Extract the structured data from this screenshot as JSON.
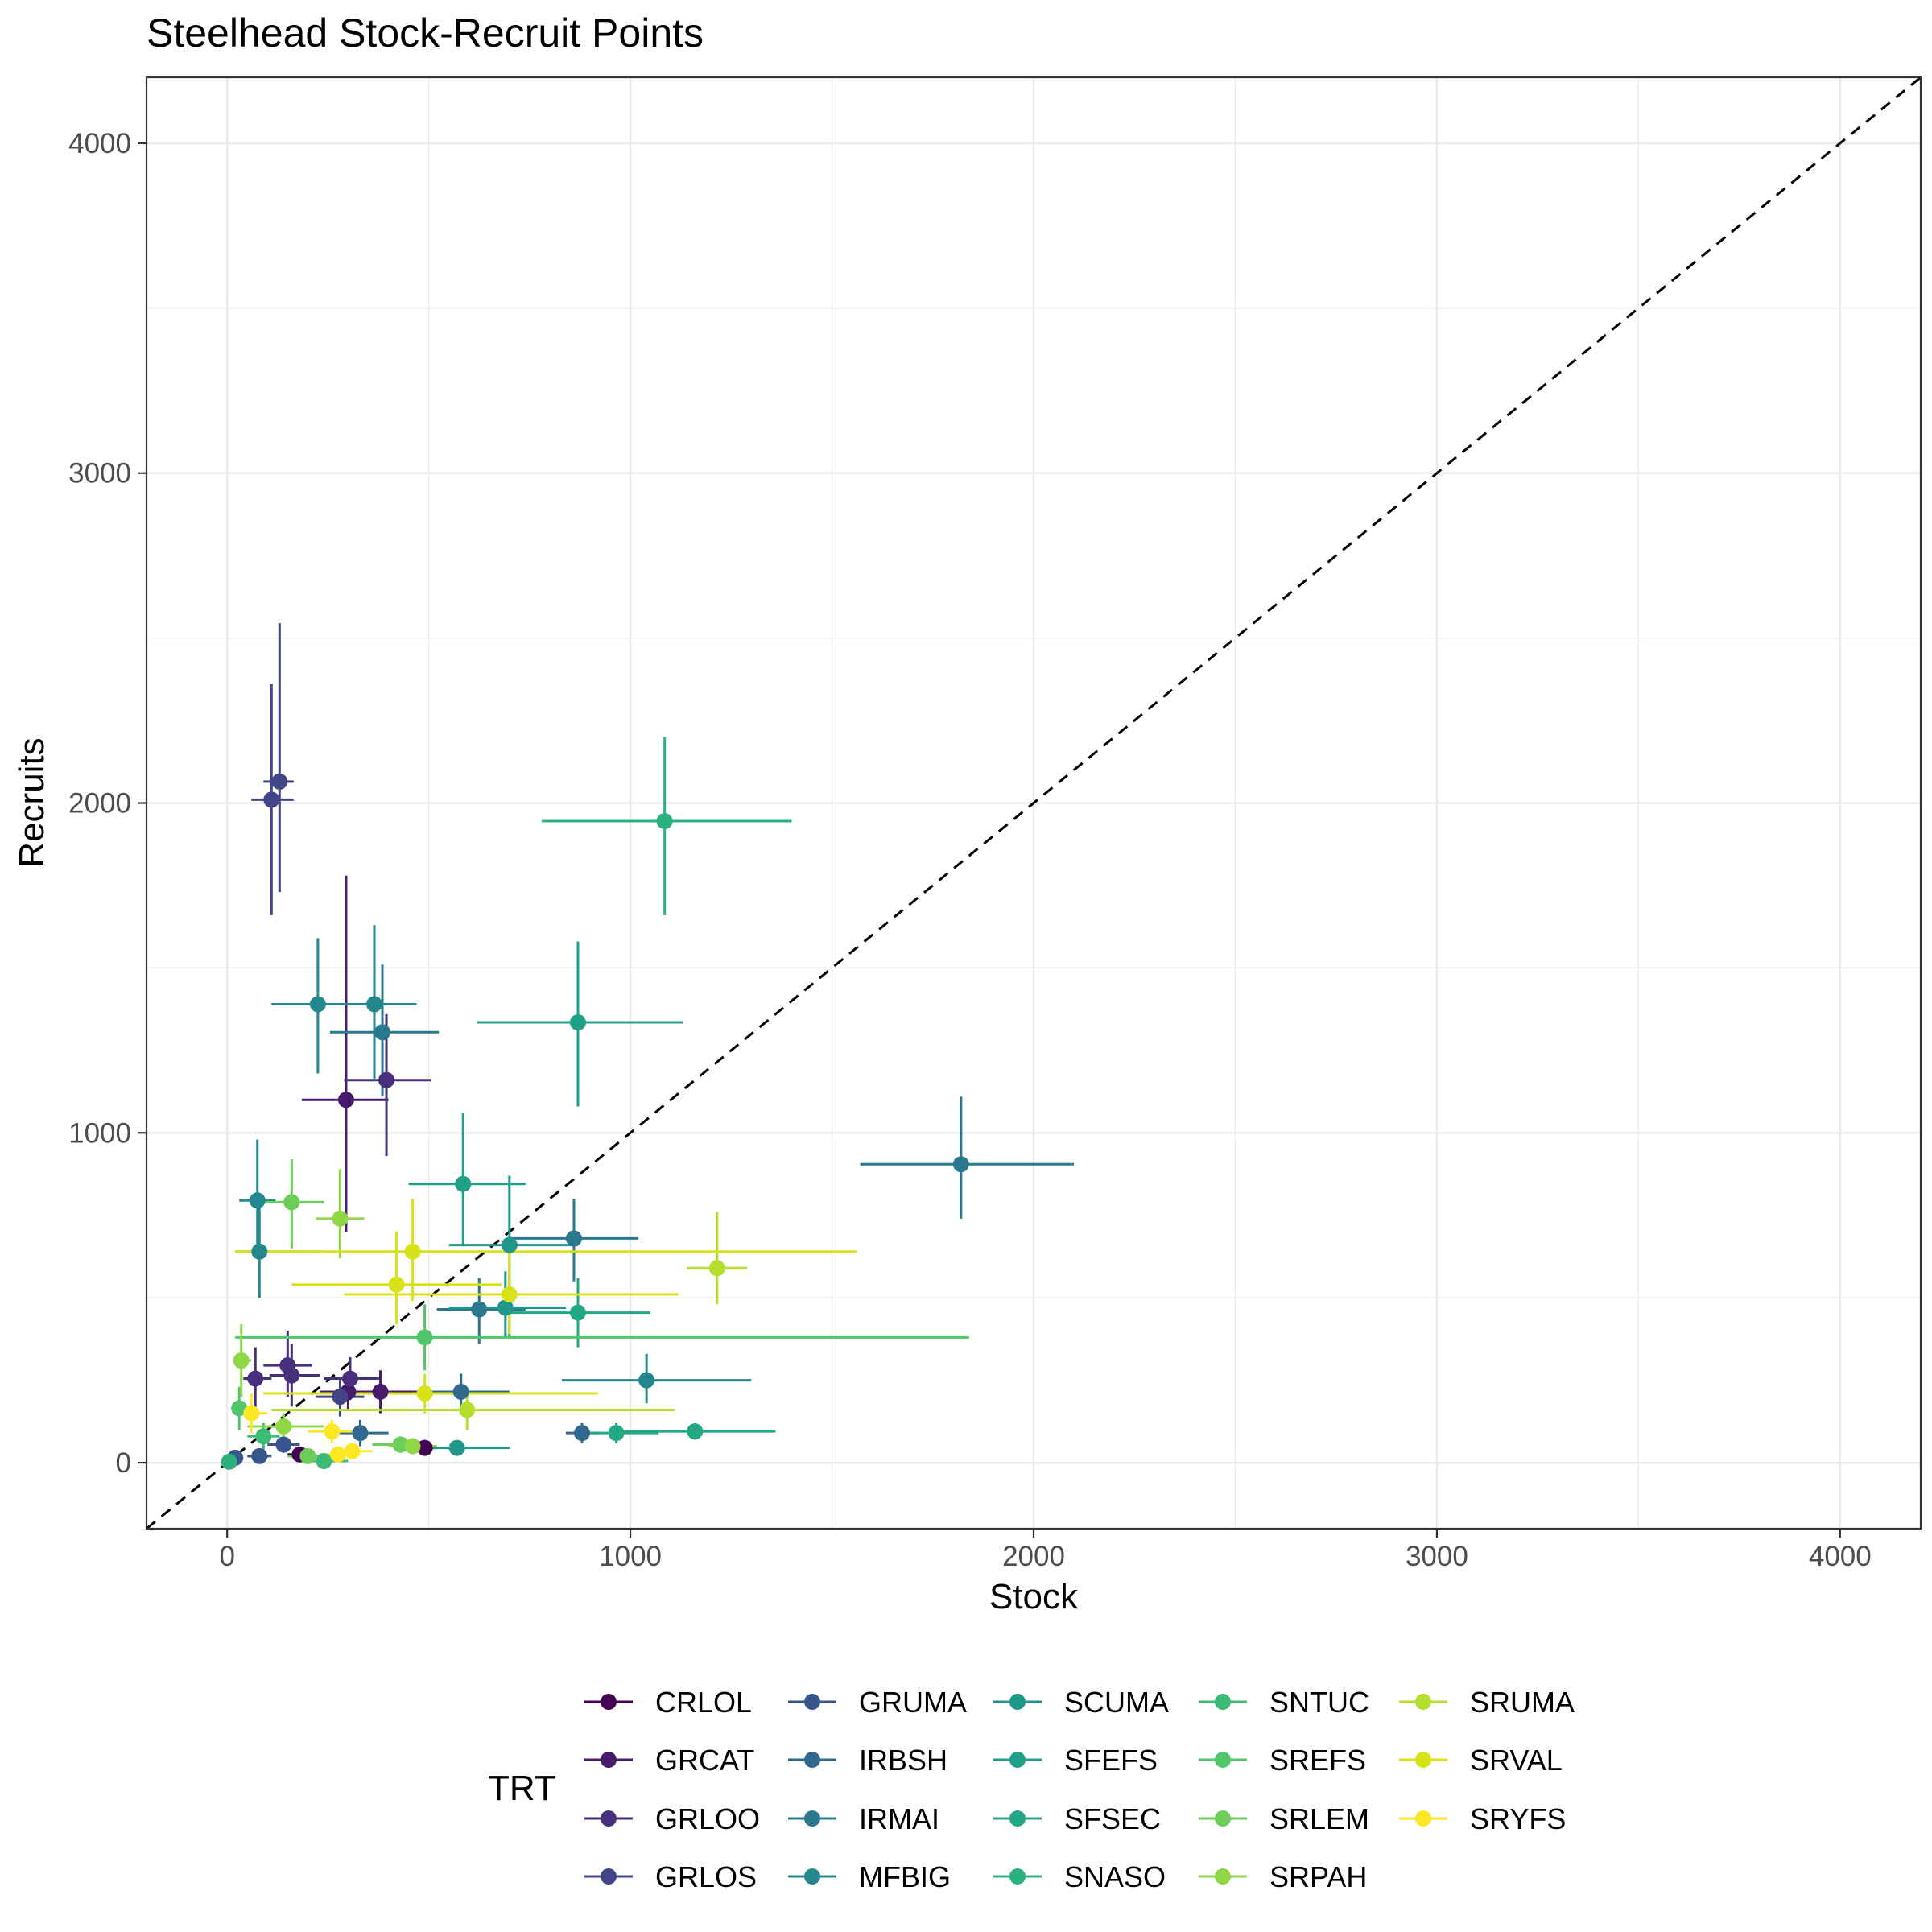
{
  "chart_data": {
    "type": "scatter",
    "title": "Steelhead Stock-Recruit Points",
    "xlabel": "Stock",
    "ylabel": "Recruits",
    "xlim": [
      -200,
      4200
    ],
    "ylim": [
      -200,
      4200
    ],
    "xticks": [
      0,
      1000,
      2000,
      3000,
      4000
    ],
    "yticks": [
      0,
      1000,
      2000,
      3000,
      4000
    ],
    "grid": true,
    "reference_line": "y = x (dashed)",
    "legend": {
      "title": "TRT",
      "position": "bottom",
      "columns": 5
    },
    "series": [
      {
        "name": "CRLOL",
        "color": "#440154",
        "points": [
          {
            "x": 490,
            "y": 45,
            "xerr": [
              460,
              520
            ],
            "yerr": [
              30,
              60
            ]
          },
          {
            "x": 180,
            "y": 25,
            "xerr": [
              150,
              210
            ],
            "yerr": [
              15,
              35
            ]
          }
        ]
      },
      {
        "name": "GRCAT",
        "color": "#481A6C",
        "points": [
          {
            "x": 295,
            "y": 1100,
            "xerr": [
              185,
              400
            ],
            "yerr": [
              700,
              1780
            ]
          },
          {
            "x": 380,
            "y": 215,
            "xerr": [
              290,
              470
            ],
            "yerr": [
              150,
              280
            ]
          },
          {
            "x": 300,
            "y": 215,
            "xerr": [
              230,
              370
            ],
            "yerr": [
              160,
              270
            ]
          }
        ]
      },
      {
        "name": "GRLOO",
        "color": "#472F7D",
        "points": [
          {
            "x": 395,
            "y": 1160,
            "xerr": [
              290,
              505
            ],
            "yerr": [
              930,
              1360
            ]
          },
          {
            "x": 160,
            "y": 265,
            "xerr": [
              105,
              230
            ],
            "yerr": [
              170,
              360
            ]
          },
          {
            "x": 150,
            "y": 295,
            "xerr": [
              90,
              210
            ],
            "yerr": [
              200,
              400
            ]
          },
          {
            "x": 70,
            "y": 255,
            "xerr": [
              40,
              110
            ],
            "yerr": [
              160,
              350
            ]
          },
          {
            "x": 305,
            "y": 255,
            "xerr": [
              240,
              380
            ],
            "yerr": [
              190,
              320
            ]
          }
        ]
      },
      {
        "name": "GRLOS",
        "color": "#414487",
        "points": [
          {
            "x": 130,
            "y": 2065,
            "xerr": [
              90,
              165
            ],
            "yerr": [
              1730,
              2545
            ]
          },
          {
            "x": 110,
            "y": 2010,
            "xerr": [
              60,
              165
            ],
            "yerr": [
              1660,
              2360
            ]
          },
          {
            "x": 280,
            "y": 200,
            "xerr": [
              220,
              340
            ],
            "yerr": [
              140,
              260
            ]
          }
        ]
      },
      {
        "name": "GRUMA",
        "color": "#39568C",
        "points": [
          {
            "x": 20,
            "y": 15,
            "xerr": [
              5,
              40
            ],
            "yerr": [
              5,
              30
            ]
          },
          {
            "x": 80,
            "y": 20,
            "xerr": [
              50,
              110
            ],
            "yerr": [
              10,
              30
            ]
          },
          {
            "x": 140,
            "y": 55,
            "xerr": [
              100,
              180
            ],
            "yerr": [
              30,
              80
            ]
          }
        ]
      },
      {
        "name": "IRBSH",
        "color": "#31688E",
        "points": [
          {
            "x": 330,
            "y": 90,
            "xerr": [
              270,
              400
            ],
            "yerr": [
              50,
              130
            ]
          },
          {
            "x": 580,
            "y": 215,
            "xerr": [
              470,
              700
            ],
            "yerr": [
              160,
              270
            ]
          },
          {
            "x": 880,
            "y": 90,
            "xerr": [
              840,
              920
            ],
            "yerr": [
              60,
              120
            ]
          }
        ]
      },
      {
        "name": "IRMAI",
        "color": "#2A788E",
        "points": [
          {
            "x": 1820,
            "y": 905,
            "xerr": [
              1570,
              2100
            ],
            "yerr": [
              740,
              1110
            ]
          },
          {
            "x": 860,
            "y": 680,
            "xerr": [
              700,
              1020
            ],
            "yerr": [
              550,
              800
            ]
          },
          {
            "x": 385,
            "y": 1305,
            "xerr": [
              255,
              525
            ],
            "yerr": [
              1110,
              1510
            ]
          },
          {
            "x": 625,
            "y": 465,
            "xerr": [
              520,
              740
            ],
            "yerr": [
              360,
              560
            ]
          }
        ]
      },
      {
        "name": "MFBIG",
        "color": "#23888E",
        "points": [
          {
            "x": 225,
            "y": 1390,
            "xerr": [
              110,
              345
            ],
            "yerr": [
              1180,
              1590
            ]
          },
          {
            "x": 365,
            "y": 1390,
            "xerr": [
              260,
              470
            ],
            "yerr": [
              1160,
              1630
            ]
          },
          {
            "x": 75,
            "y": 795,
            "xerr": [
              30,
              120
            ],
            "yerr": [
              620,
              980
            ]
          },
          {
            "x": 80,
            "y": 640,
            "xerr": [
              20,
              230
            ],
            "yerr": [
              500,
              790
            ]
          },
          {
            "x": 1040,
            "y": 250,
            "xerr": [
              830,
              1300
            ],
            "yerr": [
              180,
              330
            ]
          }
        ]
      },
      {
        "name": "SCUMA",
        "color": "#1F988B",
        "points": [
          {
            "x": 690,
            "y": 470,
            "xerr": [
              550,
              840
            ],
            "yerr": [
              380,
              580
            ]
          },
          {
            "x": 700,
            "y": 660,
            "xerr": [
              550,
              870
            ],
            "yerr": [
              380,
              870
            ]
          },
          {
            "x": 570,
            "y": 45,
            "xerr": [
              480,
              700
            ],
            "yerr": [
              30,
              60
            ]
          }
        ]
      },
      {
        "name": "SFEFS",
        "color": "#1FA187",
        "points": [
          {
            "x": 585,
            "y": 845,
            "xerr": [
              450,
              740
            ],
            "yerr": [
              660,
              1060
            ]
          },
          {
            "x": 870,
            "y": 1335,
            "xerr": [
              620,
              1130
            ],
            "yerr": [
              1080,
              1580
            ]
          }
        ]
      },
      {
        "name": "SFSEC",
        "color": "#22A884",
        "points": [
          {
            "x": 1160,
            "y": 95,
            "xerr": [
              950,
              1360
            ],
            "yerr": [
              70,
              120
            ]
          },
          {
            "x": 965,
            "y": 90,
            "xerr": [
              860,
              1070
            ],
            "yerr": [
              60,
              120
            ]
          },
          {
            "x": 870,
            "y": 455,
            "xerr": [
              680,
              1050
            ],
            "yerr": [
              350,
              560
            ]
          }
        ]
      },
      {
        "name": "SNASO",
        "color": "#2BB07F",
        "points": [
          {
            "x": 1085,
            "y": 1945,
            "xerr": [
              780,
              1400
            ],
            "yerr": [
              1660,
              2200
            ]
          },
          {
            "x": 5,
            "y": 3,
            "xerr": [
              0,
              15
            ],
            "yerr": [
              0,
              10
            ]
          }
        ]
      },
      {
        "name": "SNTUC",
        "color": "#3BBB75",
        "points": [
          {
            "x": 240,
            "y": 5,
            "xerr": [
              180,
              300
            ],
            "yerr": [
              0,
              15
            ]
          },
          {
            "x": 90,
            "y": 80,
            "xerr": [
              50,
              130
            ],
            "yerr": [
              40,
              120
            ]
          }
        ]
      },
      {
        "name": "SREFS",
        "color": "#51C56A",
        "points": [
          {
            "x": 490,
            "y": 380,
            "xerr": [
              20,
              1840
            ],
            "yerr": [
              280,
              480
            ]
          },
          {
            "x": 30,
            "y": 165,
            "xerr": [
              10,
              60
            ],
            "yerr": [
              100,
              230
            ]
          }
        ]
      },
      {
        "name": "SRLEM",
        "color": "#6DCD59",
        "points": [
          {
            "x": 160,
            "y": 790,
            "xerr": [
              90,
              240
            ],
            "yerr": [
              650,
              920
            ]
          },
          {
            "x": 200,
            "y": 20,
            "xerr": [
              150,
              250
            ],
            "yerr": [
              10,
              30
            ]
          },
          {
            "x": 430,
            "y": 55,
            "xerr": [
              360,
              500
            ],
            "yerr": [
              30,
              80
            ]
          }
        ]
      },
      {
        "name": "SRPAH",
        "color": "#8FD744",
        "points": [
          {
            "x": 280,
            "y": 740,
            "xerr": [
              220,
              340
            ],
            "yerr": [
              620,
              890
            ]
          },
          {
            "x": 35,
            "y": 310,
            "xerr": [
              15,
              60
            ],
            "yerr": [
              200,
              420
            ]
          },
          {
            "x": 140,
            "y": 110,
            "xerr": [
              50,
              240
            ],
            "yerr": [
              70,
              150
            ]
          },
          {
            "x": 460,
            "y": 50,
            "xerr": [
              400,
              520
            ],
            "yerr": [
              30,
              70
            ]
          }
        ]
      },
      {
        "name": "SRUMA",
        "color": "#B4DE2C",
        "points": [
          {
            "x": 1215,
            "y": 590,
            "xerr": [
              1140,
              1290
            ],
            "yerr": [
              480,
              760
            ]
          },
          {
            "x": 595,
            "y": 160,
            "xerr": [
              110,
              1110
            ],
            "yerr": [
              100,
              220
            ]
          }
        ]
      },
      {
        "name": "SRVAL",
        "color": "#D8E219",
        "points": [
          {
            "x": 460,
            "y": 640,
            "xerr": [
              20,
              1560
            ],
            "yerr": [
              490,
              800
            ]
          },
          {
            "x": 420,
            "y": 540,
            "xerr": [
              160,
              680
            ],
            "yerr": [
              420,
              700
            ]
          },
          {
            "x": 700,
            "y": 510,
            "xerr": [
              290,
              1120
            ],
            "yerr": [
              390,
              640
            ]
          },
          {
            "x": 490,
            "y": 210,
            "xerr": [
              90,
              920
            ],
            "yerr": [
              150,
              270
            ]
          }
        ]
      },
      {
        "name": "SRYFS",
        "color": "#FDE725",
        "points": [
          {
            "x": 60,
            "y": 150,
            "xerr": [
              30,
              100
            ],
            "yerr": [
              90,
              210
            ]
          },
          {
            "x": 260,
            "y": 95,
            "xerr": [
              200,
              330
            ],
            "yerr": [
              60,
              130
            ]
          },
          {
            "x": 275,
            "y": 25,
            "xerr": [
              230,
              330
            ],
            "yerr": [
              10,
              40
            ]
          },
          {
            "x": 310,
            "y": 35,
            "xerr": [
              270,
              360
            ],
            "yerr": [
              20,
              50
            ]
          }
        ]
      }
    ]
  }
}
